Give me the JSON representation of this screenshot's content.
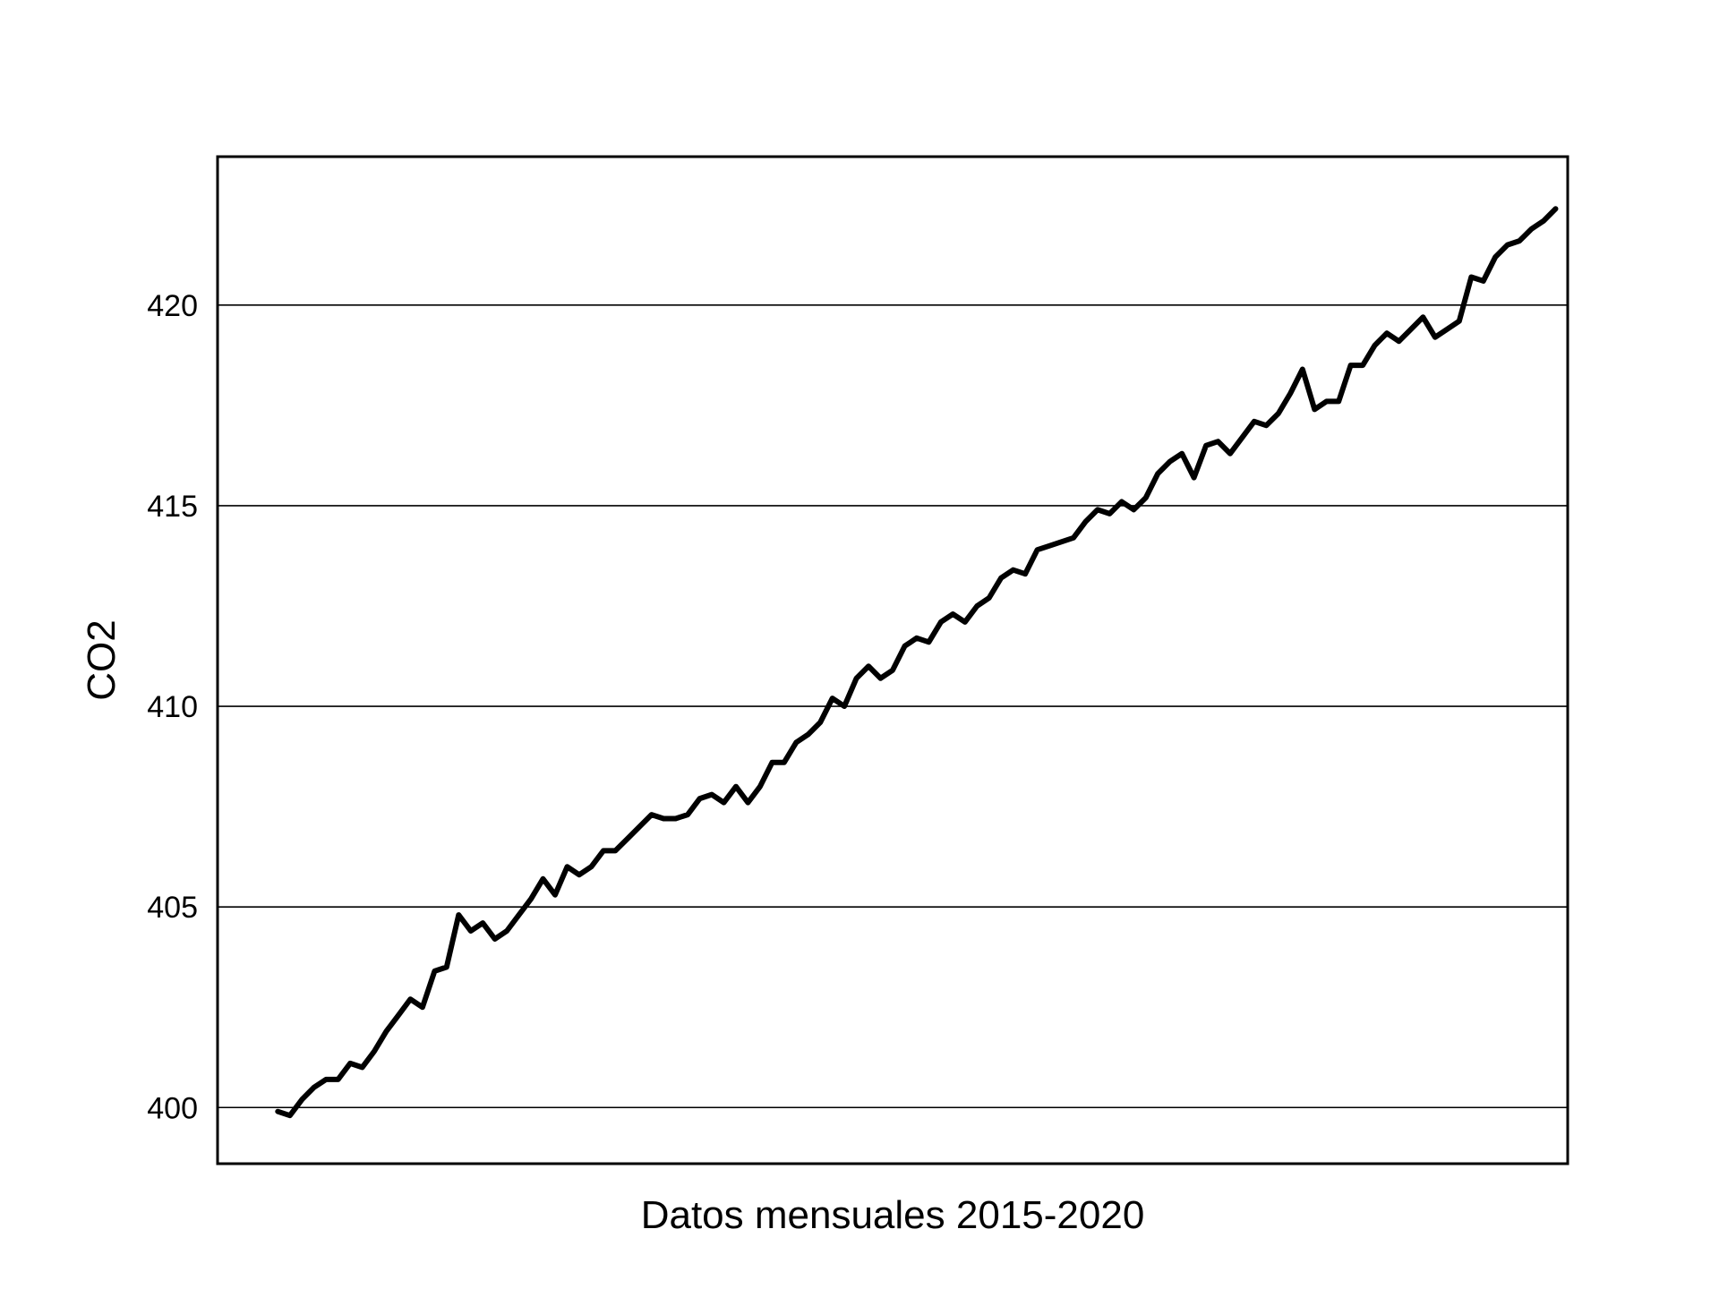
{
  "chart_data": {
    "type": "line",
    "title": "",
    "xlabel": "Datos mensuales 2015-2020",
    "ylabel": "CO2",
    "ylim": [
      398.6,
      423.7
    ],
    "xlim": [
      -5,
      107
    ],
    "yticks": [
      400,
      405,
      410,
      415,
      420
    ],
    "ytick_labels": [
      "400",
      "405",
      "410",
      "415",
      "420"
    ],
    "grid": "horizontal",
    "line_color": "#000000",
    "series": [
      {
        "x": [
          0,
          1,
          2,
          3,
          4,
          5,
          6,
          7,
          8,
          9,
          10,
          11,
          12,
          13,
          14,
          15,
          16,
          17,
          18,
          19,
          20,
          21,
          22,
          23,
          24,
          25,
          26,
          27,
          28,
          29,
          30,
          31,
          32,
          33,
          34,
          35,
          36,
          37,
          38,
          39,
          40,
          41,
          42,
          43,
          44,
          45,
          46,
          47,
          48,
          49,
          50,
          51,
          52,
          53,
          54,
          55,
          56,
          57,
          58,
          59,
          60,
          61,
          62,
          63,
          64,
          65,
          66,
          67,
          68,
          69,
          70,
          71,
          72,
          73,
          74,
          75,
          76,
          77,
          78,
          79,
          80,
          81,
          82,
          83,
          84,
          85,
          86,
          87,
          88,
          89,
          90,
          91,
          92,
          93,
          94,
          95,
          96,
          97,
          98,
          99,
          100,
          101,
          102,
          103,
          104,
          105,
          106
        ],
        "values": [
          399.9,
          399.8,
          400.2,
          400.5,
          400.7,
          400.7,
          401.1,
          401.0,
          401.4,
          401.9,
          402.3,
          402.7,
          402.5,
          403.4,
          403.5,
          404.8,
          404.4,
          404.6,
          404.2,
          404.4,
          404.8,
          405.2,
          405.7,
          405.3,
          406.0,
          405.8,
          406.0,
          406.4,
          406.4,
          406.7,
          407.0,
          407.3,
          407.2,
          407.2,
          407.3,
          407.7,
          407.8,
          407.6,
          408.0,
          407.6,
          408.0,
          408.6,
          408.6,
          409.1,
          409.3,
          409.6,
          410.2,
          410.0,
          410.7,
          411.0,
          410.7,
          410.9,
          411.5,
          411.7,
          411.6,
          412.1,
          412.3,
          412.1,
          412.5,
          412.7,
          413.2,
          413.4,
          413.3,
          413.9,
          414.0,
          414.1,
          414.2,
          414.6,
          414.9,
          414.8,
          415.1,
          414.9,
          415.2,
          415.8,
          416.1,
          416.3,
          415.7,
          416.5,
          416.6,
          416.3,
          416.7,
          417.1,
          417.0,
          417.3,
          417.8,
          418.4,
          417.4,
          417.6,
          417.6,
          418.5,
          418.5,
          419.0,
          419.3,
          419.1,
          419.4,
          419.7,
          419.2,
          419.4,
          419.6,
          420.7,
          420.6,
          421.2,
          421.5,
          421.6,
          421.9,
          422.1,
          422.4
        ]
      }
    ]
  }
}
